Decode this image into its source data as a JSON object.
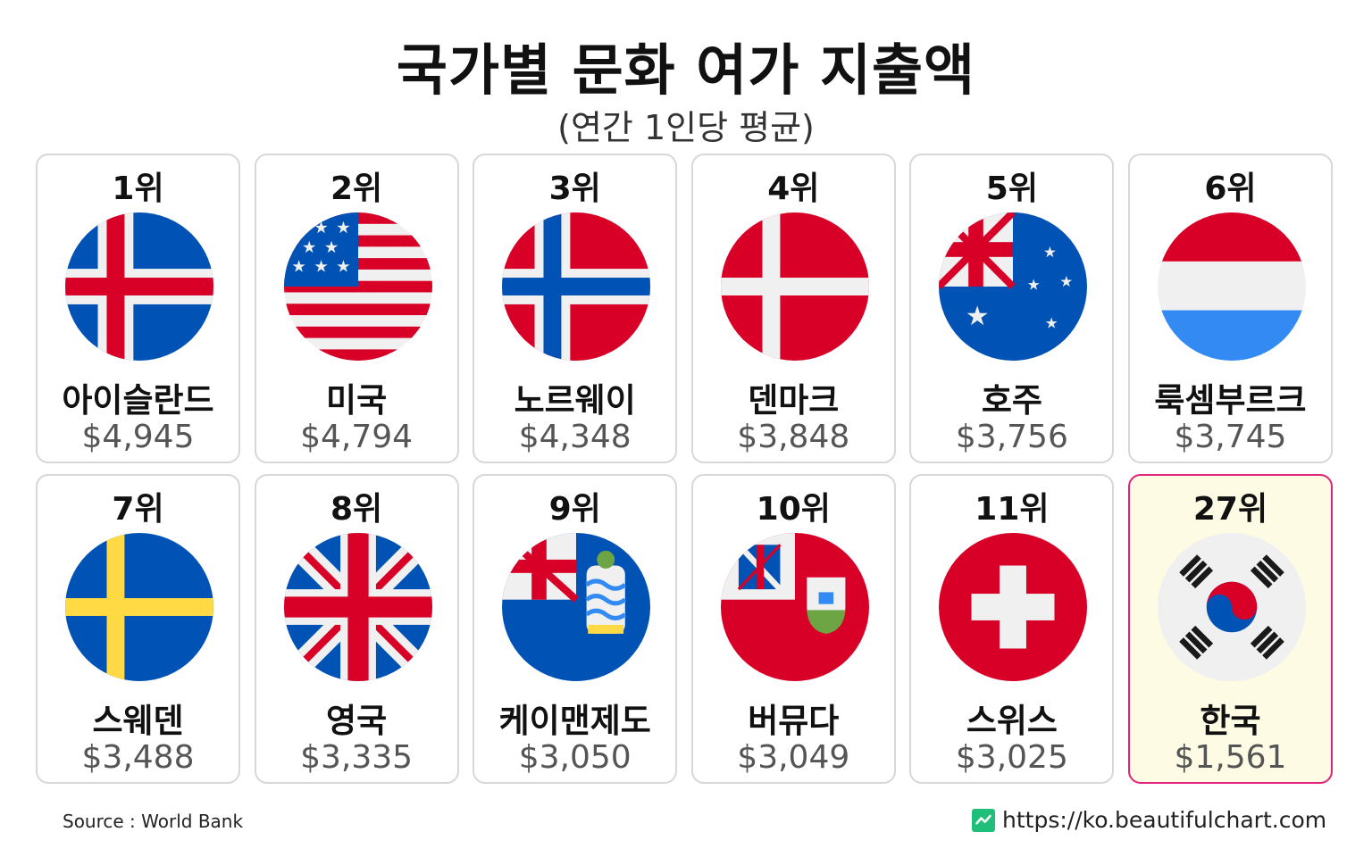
{
  "title": "국가별 문화 여가 지출액",
  "subtitle": "(연간 1인당 평균)",
  "source": "Source : World Bank",
  "website": "https://ko.beautifulchart.com",
  "highlight_color": "#e0247a",
  "highlight_bg": "#fdfbe3",
  "chart_data": {
    "type": "bar",
    "title": "국가별 문화 여가 지출액",
    "subtitle": "(연간 1인당 평균)",
    "categories": [
      "아이슬란드",
      "미국",
      "노르웨이",
      "덴마크",
      "호주",
      "룩셈부르크",
      "스웨덴",
      "영국",
      "케이맨제도",
      "버뮤다",
      "스위스",
      "한국"
    ],
    "values": [
      4945,
      4794,
      4348,
      3848,
      3756,
      3745,
      3488,
      3335,
      3050,
      3049,
      3025,
      1561
    ],
    "series": [
      {
        "values": [
          4945,
          4794,
          4348,
          3848,
          3756,
          3745,
          3488,
          3335,
          3050,
          3049,
          3025,
          1561
        ]
      }
    ]
  },
  "cards": [
    {
      "rank": "1위",
      "country": "아이슬란드",
      "value": "$4,945",
      "flag": "iceland-flag",
      "highlight": false
    },
    {
      "rank": "2위",
      "country": "미국",
      "value": "$4,794",
      "flag": "usa-flag",
      "highlight": false
    },
    {
      "rank": "3위",
      "country": "노르웨이",
      "value": "$4,348",
      "flag": "norway-flag",
      "highlight": false
    },
    {
      "rank": "4위",
      "country": "덴마크",
      "value": "$3,848",
      "flag": "denmark-flag",
      "highlight": false
    },
    {
      "rank": "5위",
      "country": "호주",
      "value": "$3,756",
      "flag": "australia-flag",
      "highlight": false
    },
    {
      "rank": "6위",
      "country": "룩셈부르크",
      "value": "$3,745",
      "flag": "luxembourg-flag",
      "highlight": false
    },
    {
      "rank": "7위",
      "country": "스웨덴",
      "value": "$3,488",
      "flag": "sweden-flag",
      "highlight": false
    },
    {
      "rank": "8위",
      "country": "영국",
      "value": "$3,335",
      "flag": "uk-flag",
      "highlight": false
    },
    {
      "rank": "9위",
      "country": "케이맨제도",
      "value": "$3,050",
      "flag": "cayman-islands-flag",
      "highlight": false
    },
    {
      "rank": "10위",
      "country": "버뮤다",
      "value": "$3,049",
      "flag": "bermuda-flag",
      "highlight": false
    },
    {
      "rank": "11위",
      "country": "스위스",
      "value": "$3,025",
      "flag": "switzerland-flag",
      "highlight": false
    },
    {
      "rank": "27위",
      "country": "한국",
      "value": "$1,561",
      "flag": "south-korea-flag",
      "highlight": true
    }
  ]
}
